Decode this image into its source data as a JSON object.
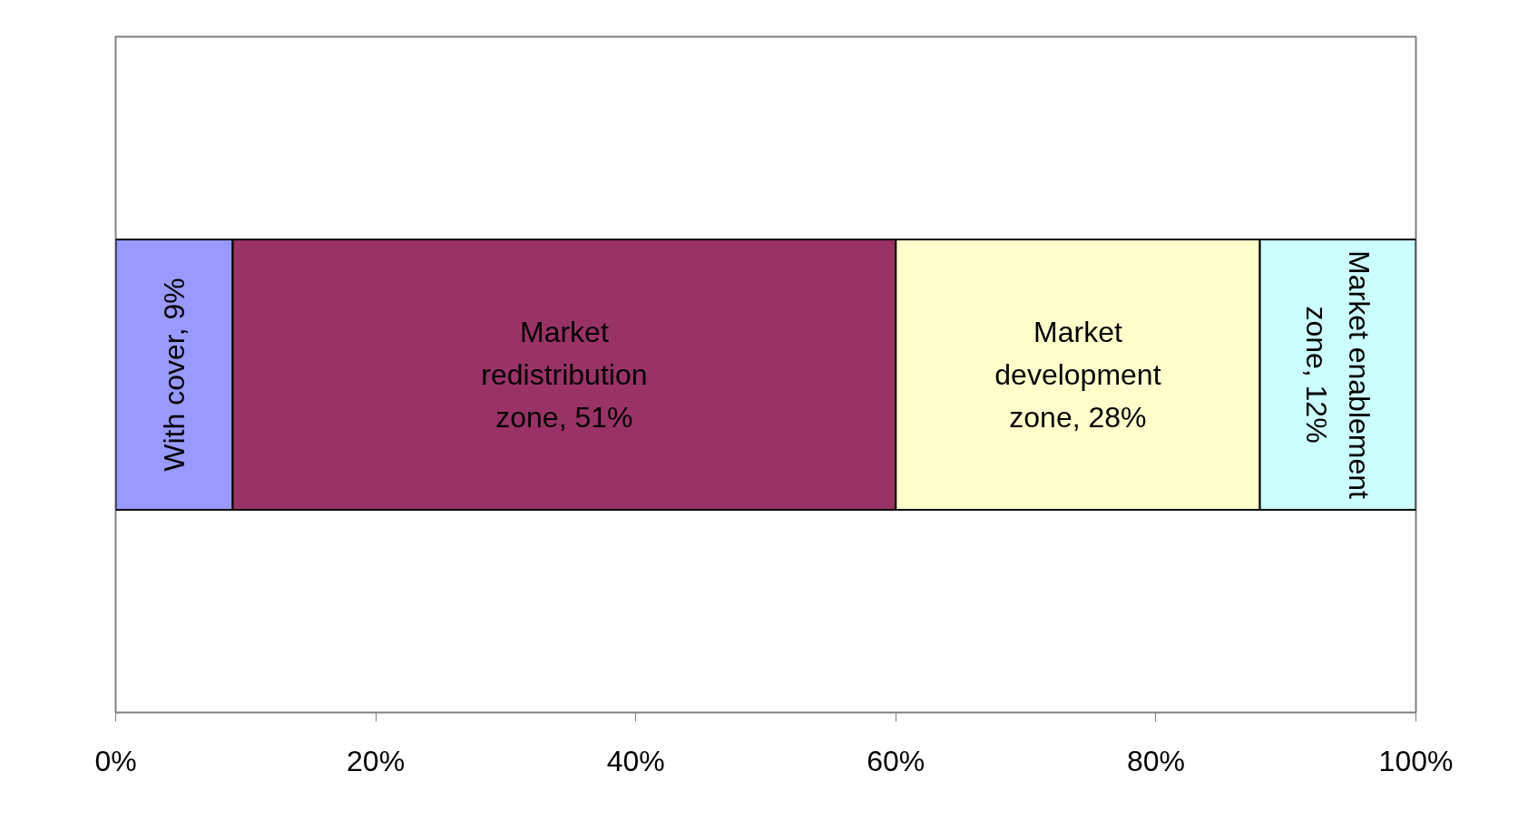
{
  "chart_data": {
    "type": "bar",
    "orientation": "horizontal",
    "stacked": true,
    "categories": [
      null
    ],
    "series": [
      {
        "color": "#9999ff",
        "values": [
          9
        ],
        "value_labels": [
          "With cover, 9%"
        ]
      },
      {
        "color": "#993366",
        "values": [
          51
        ],
        "value_labels": [
          "Market\nredistribution\nzone, 51%"
        ]
      },
      {
        "color": "#ffffcc",
        "values": [
          28
        ],
        "value_labels": [
          "Market\ndevelopment\nzone, 28%"
        ]
      },
      {
        "color": "#ccffff",
        "values": [
          12
        ],
        "value_labels": [
          "Market enablement\nzone, 12%"
        ]
      }
    ],
    "xlim": [
      0,
      100
    ],
    "xticks": [
      {
        "value": 0,
        "label": "0%"
      },
      {
        "value": 20,
        "label": "20%"
      },
      {
        "value": 40,
        "label": "40%"
      },
      {
        "value": 60,
        "label": "60%"
      },
      {
        "value": 80,
        "label": "80%"
      },
      {
        "value": 100,
        "label": "100%"
      }
    ],
    "grid": false,
    "tick_labels": "x"
  }
}
